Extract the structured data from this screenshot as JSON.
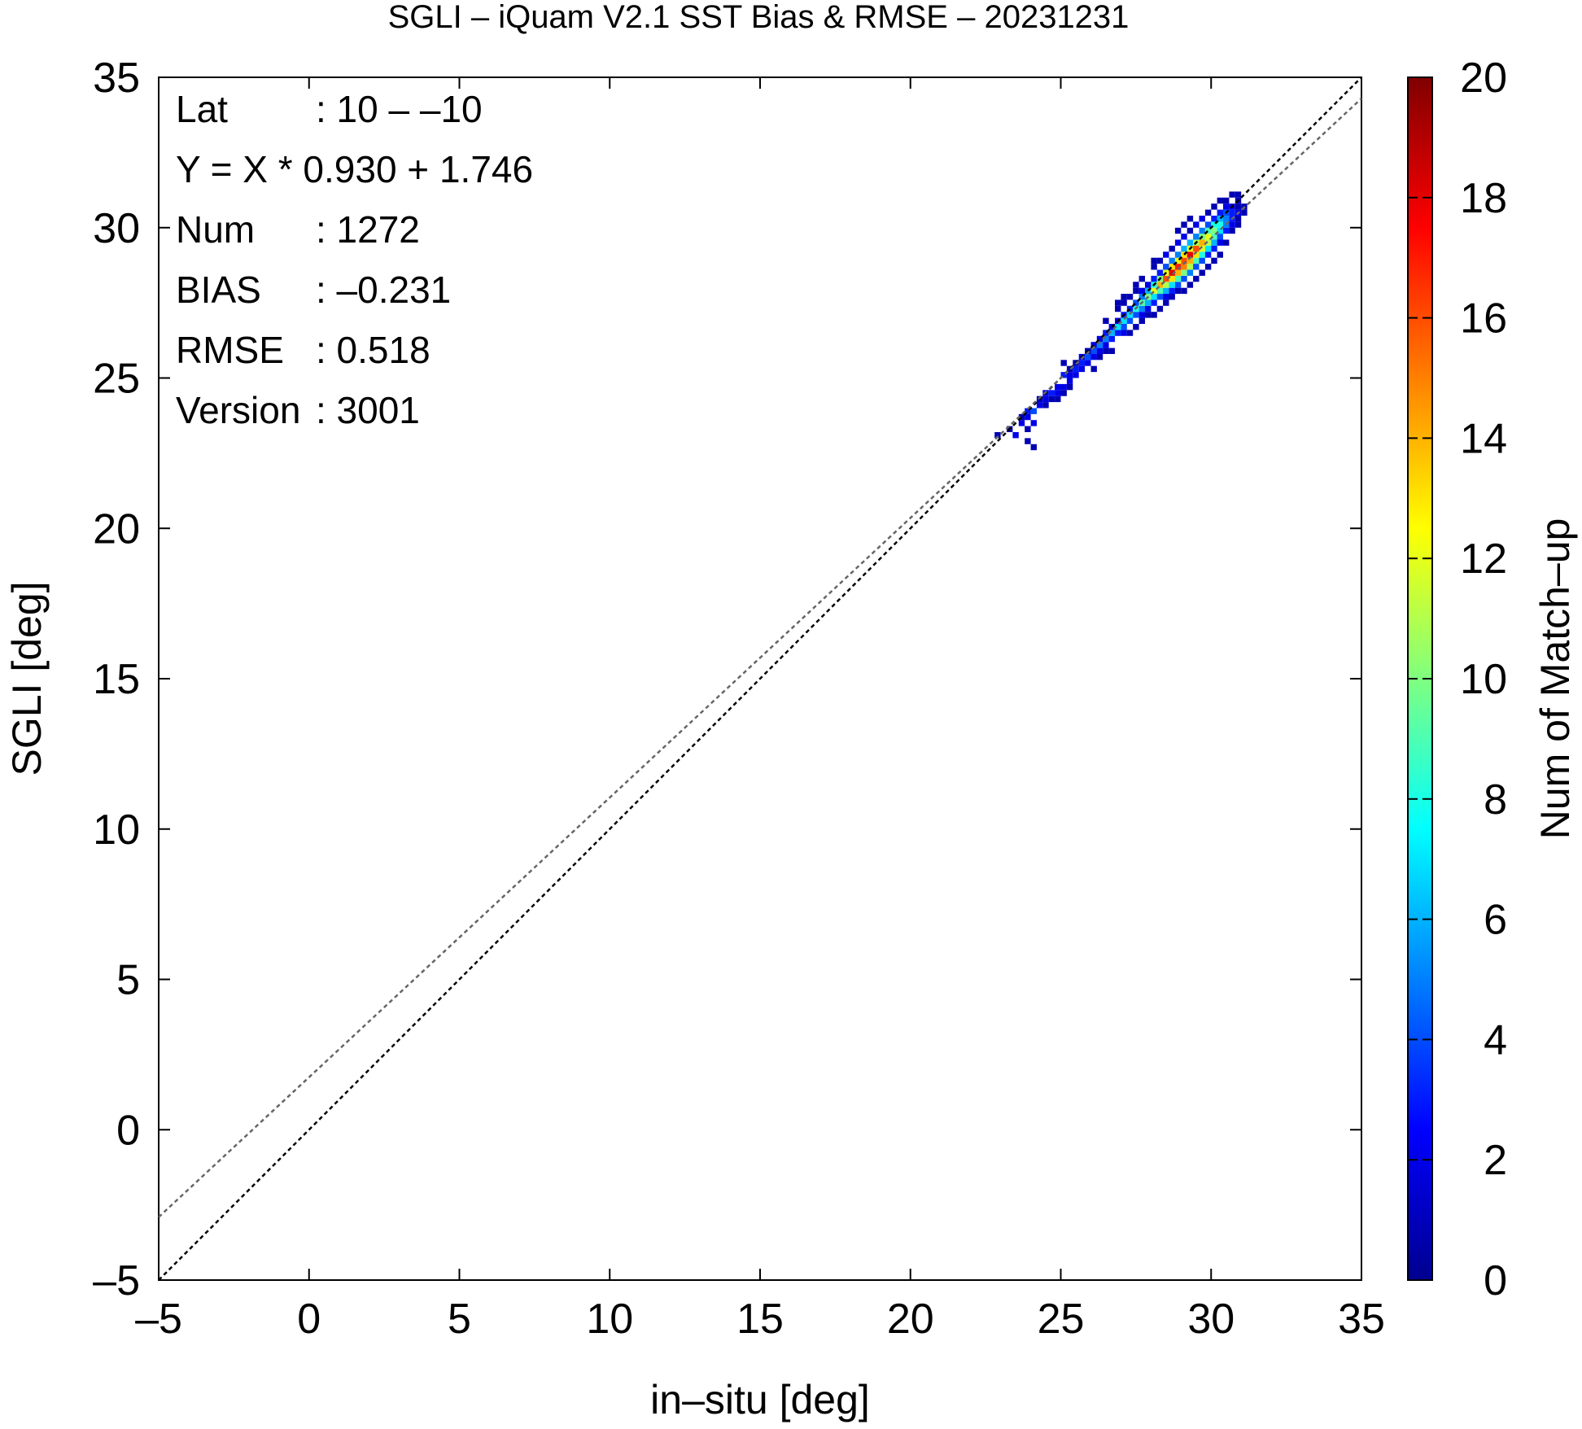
{
  "chart_data": {
    "type": "heatmap",
    "title": "SGLI – iQuam V2.1 SST Bias & RMSE  – 20231231",
    "xlabel": "in–situ [deg]",
    "ylabel": "SGLI [deg]",
    "colorbar_label": "Num of Match–up",
    "xlim": [
      -5,
      35
    ],
    "ylim": [
      -5,
      35
    ],
    "clim": [
      0,
      20
    ],
    "x_ticks": [
      "–5",
      "0",
      "5",
      "10",
      "15",
      "20",
      "25",
      "30",
      "35"
    ],
    "y_ticks": [
      "–5",
      "0",
      "5",
      "10",
      "15",
      "20",
      "25",
      "30",
      "35"
    ],
    "colorbar_ticks": [
      "0",
      "2",
      "4",
      "6",
      "8",
      "10",
      "12",
      "14",
      "16",
      "18",
      "20"
    ],
    "grid": false,
    "stats": [
      {
        "key": "Lat",
        "value": ": 10 – –10"
      },
      {
        "key": "Y = X * 0.930 + 1.746",
        "value": ""
      },
      {
        "key": "Num",
        "value": ": 1272"
      },
      {
        "key": "BIAS",
        "value": ": –0.231"
      },
      {
        "key": "RMSE",
        "value": ": 0.518"
      },
      {
        "key": "Version",
        "value": ": 3001"
      }
    ],
    "lines": [
      {
        "name": "1:1",
        "slope": 1.0,
        "intercept": 0.0,
        "color": "#000000"
      },
      {
        "name": "regression",
        "slope": 0.93,
        "intercept": 1.746,
        "color": "#666666"
      }
    ],
    "cell_size": 0.2,
    "cells": [
      [
        22.9,
        23.1,
        1
      ],
      [
        23.3,
        23.3,
        1
      ],
      [
        23.5,
        23.1,
        2
      ],
      [
        23.7,
        23.5,
        2
      ],
      [
        23.7,
        23.7,
        1
      ],
      [
        23.9,
        23.3,
        1
      ],
      [
        23.9,
        23.7,
        2
      ],
      [
        23.9,
        23.9,
        3
      ],
      [
        24.1,
        23.5,
        2
      ],
      [
        24.1,
        23.9,
        4
      ],
      [
        24.1,
        22.7,
        1
      ],
      [
        23.9,
        22.9,
        1
      ],
      [
        24.3,
        24.1,
        2
      ],
      [
        24.3,
        24.3,
        1
      ],
      [
        24.5,
        24.1,
        1
      ],
      [
        24.5,
        24.3,
        2
      ],
      [
        24.5,
        24.5,
        2
      ],
      [
        24.7,
        24.5,
        3
      ],
      [
        24.7,
        24.3,
        1
      ],
      [
        24.9,
        24.3,
        1
      ],
      [
        24.9,
        24.5,
        2
      ],
      [
        24.9,
        24.7,
        2
      ],
      [
        25.1,
        24.5,
        1
      ],
      [
        25.1,
        24.7,
        2
      ],
      [
        25.1,
        25.1,
        3
      ],
      [
        25.3,
        24.7,
        1
      ],
      [
        25.3,
        24.9,
        2
      ],
      [
        25.3,
        25.1,
        2
      ],
      [
        25.3,
        25.3,
        1
      ],
      [
        25.5,
        25.1,
        2
      ],
      [
        25.5,
        25.3,
        3
      ],
      [
        25.5,
        25.5,
        1
      ],
      [
        25.7,
        25.3,
        2
      ],
      [
        25.7,
        25.5,
        3
      ],
      [
        25.7,
        25.7,
        2
      ],
      [
        25.1,
        25.5,
        1
      ],
      [
        25.9,
        25.5,
        2
      ],
      [
        25.9,
        25.7,
        4
      ],
      [
        25.9,
        25.9,
        1
      ],
      [
        26.1,
        25.7,
        2
      ],
      [
        26.1,
        25.9,
        4
      ],
      [
        26.1,
        26.1,
        2
      ],
      [
        26.3,
        25.9,
        2
      ],
      [
        26.3,
        26.1,
        5
      ],
      [
        26.3,
        26.3,
        2
      ],
      [
        26.5,
        25.9,
        1
      ],
      [
        26.5,
        26.1,
        2
      ],
      [
        26.5,
        26.3,
        5
      ],
      [
        26.5,
        26.5,
        3
      ],
      [
        26.1,
        25.3,
        1
      ],
      [
        26.3,
        25.7,
        1
      ],
      [
        26.7,
        26.3,
        3
      ],
      [
        26.7,
        26.5,
        6
      ],
      [
        26.7,
        26.7,
        2
      ],
      [
        26.9,
        26.5,
        3
      ],
      [
        26.9,
        26.7,
        7
      ],
      [
        26.9,
        26.9,
        2
      ],
      [
        26.5,
        26.9,
        1
      ],
      [
        27.1,
        26.5,
        2
      ],
      [
        27.1,
        26.7,
        4
      ],
      [
        27.1,
        26.9,
        7
      ],
      [
        27.1,
        27.1,
        3
      ],
      [
        27.3,
        26.9,
        4
      ],
      [
        27.3,
        27.1,
        7
      ],
      [
        27.3,
        27.3,
        3
      ],
      [
        27.5,
        26.7,
        1
      ],
      [
        27.5,
        27.1,
        4
      ],
      [
        27.5,
        27.3,
        8
      ],
      [
        27.5,
        27.5,
        4
      ],
      [
        27.7,
        27.1,
        2
      ],
      [
        27.7,
        27.3,
        5
      ],
      [
        27.7,
        27.5,
        9
      ],
      [
        27.7,
        27.7,
        5
      ],
      [
        27.7,
        27.9,
        2
      ],
      [
        27.9,
        27.3,
        2
      ],
      [
        27.9,
        27.5,
        6
      ],
      [
        27.9,
        27.7,
        10
      ],
      [
        27.9,
        27.9,
        6
      ],
      [
        27.9,
        28.1,
        2
      ],
      [
        28.1,
        27.5,
        3
      ],
      [
        28.1,
        27.7,
        7
      ],
      [
        28.1,
        27.9,
        12
      ],
      [
        28.1,
        28.1,
        8
      ],
      [
        28.1,
        28.3,
        3
      ],
      [
        28.3,
        27.7,
        4
      ],
      [
        28.3,
        27.9,
        9
      ],
      [
        28.3,
        28.1,
        14
      ],
      [
        28.3,
        28.3,
        10
      ],
      [
        28.3,
        28.5,
        3
      ],
      [
        28.5,
        27.7,
        2
      ],
      [
        28.5,
        27.9,
        6
      ],
      [
        28.5,
        28.1,
        11
      ],
      [
        28.5,
        28.3,
        16
      ],
      [
        28.5,
        28.5,
        12
      ],
      [
        28.5,
        28.7,
        4
      ],
      [
        28.7,
        27.9,
        3
      ],
      [
        28.7,
        28.1,
        7
      ],
      [
        28.7,
        28.3,
        13
      ],
      [
        28.7,
        28.5,
        18
      ],
      [
        28.7,
        28.7,
        13
      ],
      [
        28.7,
        28.9,
        5
      ],
      [
        28.9,
        28.1,
        4
      ],
      [
        28.9,
        28.3,
        9
      ],
      [
        28.9,
        28.5,
        14
      ],
      [
        28.9,
        28.7,
        17
      ],
      [
        28.9,
        28.9,
        12
      ],
      [
        28.9,
        29.1,
        5
      ],
      [
        29.1,
        28.3,
        4
      ],
      [
        29.1,
        28.5,
        10
      ],
      [
        29.1,
        28.7,
        15
      ],
      [
        29.1,
        28.9,
        16
      ],
      [
        29.1,
        29.1,
        13
      ],
      [
        29.1,
        29.3,
        6
      ],
      [
        29.3,
        28.5,
        5
      ],
      [
        29.3,
        28.7,
        11
      ],
      [
        29.3,
        28.9,
        14
      ],
      [
        29.3,
        29.1,
        18
      ],
      [
        29.3,
        29.3,
        12
      ],
      [
        29.3,
        29.5,
        6
      ],
      [
        29.5,
        28.7,
        4
      ],
      [
        29.5,
        28.9,
        9
      ],
      [
        29.5,
        29.1,
        13
      ],
      [
        29.5,
        29.3,
        16
      ],
      [
        29.5,
        29.5,
        11
      ],
      [
        29.5,
        29.7,
        5
      ],
      [
        29.7,
        28.9,
        4
      ],
      [
        29.7,
        29.1,
        8
      ],
      [
        29.7,
        29.3,
        12
      ],
      [
        29.7,
        29.5,
        14
      ],
      [
        29.7,
        29.7,
        10
      ],
      [
        29.7,
        29.9,
        5
      ],
      [
        29.9,
        29.1,
        3
      ],
      [
        29.9,
        29.3,
        7
      ],
      [
        29.9,
        29.5,
        11
      ],
      [
        29.9,
        29.7,
        12
      ],
      [
        29.9,
        29.9,
        9
      ],
      [
        29.9,
        30.1,
        4
      ],
      [
        30.1,
        29.3,
        3
      ],
      [
        30.1,
        29.5,
        6
      ],
      [
        30.1,
        29.7,
        9
      ],
      [
        30.1,
        29.9,
        10
      ],
      [
        30.1,
        30.1,
        8
      ],
      [
        30.1,
        30.3,
        3
      ],
      [
        30.3,
        29.5,
        2
      ],
      [
        30.3,
        29.7,
        4
      ],
      [
        30.3,
        29.9,
        7
      ],
      [
        30.3,
        30.1,
        8
      ],
      [
        30.3,
        30.3,
        6
      ],
      [
        30.3,
        30.5,
        3
      ],
      [
        30.5,
        29.9,
        3
      ],
      [
        30.5,
        30.1,
        5
      ],
      [
        30.5,
        30.3,
        5
      ],
      [
        30.5,
        30.5,
        4
      ],
      [
        30.5,
        30.7,
        2
      ],
      [
        30.7,
        30.1,
        2
      ],
      [
        30.7,
        30.3,
        3
      ],
      [
        30.7,
        30.5,
        3
      ],
      [
        30.7,
        30.7,
        2
      ],
      [
        30.9,
        30.3,
        1
      ],
      [
        30.9,
        30.5,
        2
      ],
      [
        30.9,
        30.7,
        1
      ],
      [
        31.1,
        30.5,
        1
      ],
      [
        27.3,
        27.7,
        1
      ],
      [
        27.1,
        27.5,
        1
      ],
      [
        26.9,
        27.3,
        1
      ],
      [
        27.5,
        27.9,
        1
      ],
      [
        28.1,
        28.7,
        1
      ],
      [
        28.3,
        28.9,
        1
      ],
      [
        28.5,
        29.1,
        2
      ],
      [
        28.7,
        29.3,
        1
      ],
      [
        28.9,
        29.5,
        2
      ],
      [
        29.1,
        29.7,
        2
      ],
      [
        29.3,
        29.9,
        1
      ],
      [
        29.5,
        30.1,
        2
      ],
      [
        29.7,
        30.3,
        2
      ],
      [
        29.9,
        30.5,
        1
      ],
      [
        30.1,
        30.7,
        1
      ],
      [
        30.3,
        30.9,
        1
      ],
      [
        30.5,
        30.9,
        1
      ],
      [
        29.3,
        30.3,
        1
      ],
      [
        29.1,
        30.1,
        1
      ],
      [
        28.9,
        29.9,
        1
      ],
      [
        30.7,
        31.1,
        1
      ],
      [
        28.3,
        27.3,
        1
      ],
      [
        28.5,
        27.5,
        1
      ],
      [
        28.9,
        27.9,
        1
      ],
      [
        29.3,
        28.1,
        1
      ],
      [
        29.7,
        28.5,
        1
      ],
      [
        30.1,
        28.9,
        1
      ],
      [
        29.1,
        27.9,
        1
      ],
      [
        29.5,
        28.3,
        1
      ],
      [
        30.3,
        29.1,
        1
      ],
      [
        28.1,
        27.1,
        1
      ],
      [
        27.7,
        26.9,
        1
      ],
      [
        27.9,
        27.1,
        1
      ],
      [
        27.3,
        26.5,
        1
      ],
      [
        26.7,
        25.9,
        1
      ],
      [
        27.1,
        27.7,
        1
      ],
      [
        26.9,
        27.5,
        1
      ],
      [
        27.7,
        28.3,
        1
      ],
      [
        27.5,
        28.1,
        1
      ],
      [
        28.1,
        28.9,
        1
      ],
      [
        30.9,
        30.9,
        1
      ],
      [
        30.9,
        31.1,
        1
      ],
      [
        31.1,
        30.7,
        1
      ],
      [
        30.5,
        29.5,
        1
      ],
      [
        30.7,
        29.9,
        1
      ],
      [
        28.7,
        27.7,
        1
      ],
      [
        29.9,
        28.7,
        1
      ],
      [
        30.9,
        30.1,
        1
      ]
    ]
  }
}
